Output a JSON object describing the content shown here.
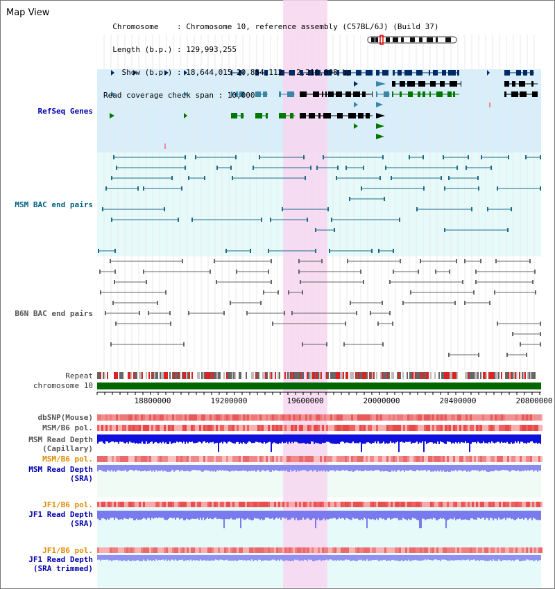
{
  "header": {
    "title": "Map View",
    "info_lines": [
      "  Chromosome    : Chromosome 10, reference assembly (C57BL/6J) (Build 37)",
      "  Length (b.p.) : 129,993,255",
      "    Show (b.p.) : 18,644,015-20,854,112 : 2,210,098 bp",
      "Read coverage check span : 10,000"
    ]
  },
  "tracks": {
    "refseq": "RefSeq Genes",
    "msm_bac": "MSM BAC end pairs",
    "b6n_bac": "B6N BAC end pairs",
    "repeat": "Repeat",
    "chromosome": "chromosome 10",
    "dbsnp": "dbSNP(Mouse)",
    "msm_b6_pol_1": "MSM/B6 pol.",
    "msm_read_depth_cap": "MSM Read Depth",
    "msm_read_depth_cap_sub": "(Capillary)",
    "msm_b6_pol_2": "MSM/B6 pol.",
    "msm_read_depth_sra": "MSM Read Depth",
    "msm_read_depth_sra_sub": "(SRA)",
    "jf1_b6_pol_1": "JF1/B6 pol.",
    "jf1_read_depth_sra": "JF1 Read Depth",
    "jf1_read_depth_sra_sub": "(SRA)",
    "jf1_b6_pol_2": "JF1/B6 pol.",
    "jf1_read_depth_trim": "JF1 Read Depth",
    "jf1_read_depth_trim_sub": "(SRA trimmed)"
  },
  "axis": {
    "ticks": [
      "18800000",
      "19200000",
      "19600000",
      "20000000",
      "20400000",
      "20800000"
    ],
    "range_start": 18644015,
    "range_end": 20854112
  },
  "highlight": {
    "start": 19570000,
    "end": 19790000
  },
  "colors": {
    "refseq_bg": "#d8eefa",
    "bac_bg": "#e6fafa",
    "lower_bg": "#f0fbf5",
    "highlight": "#f7d6f0",
    "gene_navy": "#002a66",
    "gene_steel": "#3a86a6",
    "gene_green": "#007700",
    "msm_bac": "#1f6a86",
    "b6n_bac": "#666666",
    "chromosome": "#006600",
    "depth_blue": "#1010dd",
    "depth_light": "#7a7aee"
  }
}
